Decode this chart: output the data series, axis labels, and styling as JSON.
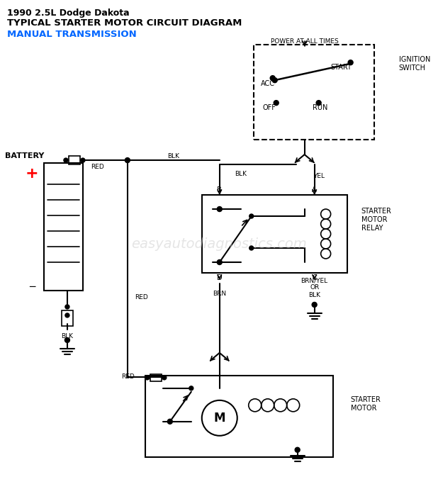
{
  "title_line1": "1990 2.5L Dodge Dakota",
  "title_line2": "TYPICAL STARTER MOTOR CIRCUIT DIAGRAM",
  "title_line3": "MANUAL TRANSMISSION",
  "watermark": "easyautodiagnostics.com",
  "bg_color": "#ffffff",
  "line_color": "#000000",
  "title_color1": "#000000",
  "title_color2": "#000000",
  "title_color3": "#0066ff",
  "watermark_color": "#cccccc"
}
